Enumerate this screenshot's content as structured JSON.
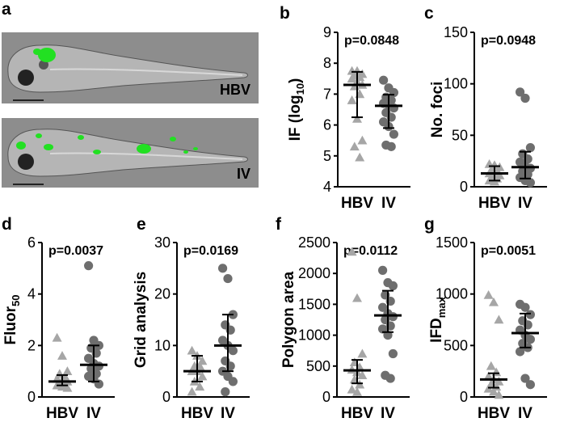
{
  "panels": {
    "a": {
      "letter": "a",
      "images": [
        {
          "label": "HBV"
        },
        {
          "label": "IV"
        }
      ]
    }
  },
  "colors": {
    "hbv": "#a6a6a6",
    "iv": "#6e6e6e",
    "line": "#000000",
    "fluor": "#22e022"
  },
  "chart_data": [
    {
      "letter": "b",
      "type": "scatter",
      "ylabel_main": "IF (log",
      "ylabel_sub": "10",
      "ylabel_end": ")",
      "ylim": [
        4,
        9
      ],
      "yticks": [
        "4",
        "5",
        "6",
        "7",
        "8",
        "9"
      ],
      "categories": [
        "HBV",
        "IV"
      ],
      "p_value": "p=0.0848",
      "series": [
        {
          "category": "HBV",
          "marker": "triangle",
          "median": 7.3,
          "iqr": [
            6.25,
            7.72
          ],
          "values": [
            7.75,
            7.75,
            7.65,
            7.6,
            7.55,
            7.5,
            7.4,
            7.3,
            7.25,
            7.0,
            6.8,
            6.2,
            5.5,
            5.3,
            4.95
          ]
        },
        {
          "category": "IV",
          "marker": "circle",
          "median": 6.62,
          "iqr": [
            5.9,
            6.98
          ],
          "values": [
            7.45,
            7.2,
            7.05,
            6.9,
            6.8,
            6.7,
            6.65,
            6.55,
            6.4,
            6.25,
            6.1,
            5.95,
            5.7,
            5.35,
            5.3
          ]
        }
      ]
    },
    {
      "letter": "c",
      "type": "scatter",
      "ylabel_main": "No. foci",
      "ylabel_sub": "",
      "ylabel_end": "",
      "ylim": [
        0,
        150
      ],
      "yticks": [
        "0",
        "50",
        "100",
        "150"
      ],
      "categories": [
        "HBV",
        "IV"
      ],
      "p_value": "p=0.0948",
      "series": [
        {
          "category": "HBV",
          "marker": "triangle",
          "median": 13,
          "iqr": [
            6,
            20
          ],
          "values": [
            22,
            21,
            19,
            17,
            15,
            13,
            12,
            11,
            9,
            8,
            6,
            5
          ]
        },
        {
          "category": "IV",
          "marker": "circle",
          "median": 19,
          "iqr": [
            8,
            34
          ],
          "values": [
            92,
            86,
            38,
            32,
            27,
            24,
            20,
            18,
            15,
            12,
            9,
            6,
            4
          ]
        }
      ]
    },
    {
      "letter": "d",
      "type": "scatter",
      "ylabel_main": "Fluor",
      "ylabel_sub": "50",
      "ylabel_end": "",
      "ylim": [
        0,
        6
      ],
      "yticks": [
        "0",
        "2",
        "4",
        "6"
      ],
      "categories": [
        "HBV",
        "IV"
      ],
      "p_value": "p=0.0037",
      "series": [
        {
          "category": "HBV",
          "marker": "triangle",
          "median": 0.6,
          "iqr": [
            0.45,
            0.85
          ],
          "values": [
            2.3,
            1.6,
            1.0,
            0.9,
            0.8,
            0.7,
            0.65,
            0.6,
            0.55,
            0.5,
            0.45,
            0.4,
            0.35
          ]
        },
        {
          "category": "IV",
          "marker": "circle",
          "median": 1.25,
          "iqr": [
            0.6,
            2.0
          ],
          "values": [
            5.1,
            2.2,
            2.0,
            1.9,
            1.7,
            1.5,
            1.3,
            1.2,
            1.1,
            0.9,
            0.8,
            0.7,
            0.5
          ]
        }
      ]
    },
    {
      "letter": "e",
      "type": "scatter",
      "ylabel_main": "Grid analysis",
      "ylabel_sub": "",
      "ylabel_end": "",
      "ylim": [
        0,
        30
      ],
      "yticks": [
        "0",
        "10",
        "20",
        "30"
      ],
      "categories": [
        "HBV",
        "IV"
      ],
      "p_value": "p=0.0169",
      "series": [
        {
          "category": "HBV",
          "marker": "triangle",
          "median": 5,
          "iqr": [
            3,
            8
          ],
          "values": [
            9,
            8,
            7,
            6,
            6,
            5,
            5,
            4,
            3,
            2,
            1
          ]
        },
        {
          "category": "IV",
          "marker": "circle",
          "median": 10,
          "iqr": [
            5,
            16
          ],
          "values": [
            25,
            23,
            16,
            14,
            13,
            11,
            10,
            9,
            7,
            6,
            5,
            4,
            3,
            1
          ]
        }
      ]
    },
    {
      "letter": "f",
      "type": "scatter",
      "ylabel_main": "Polygon area",
      "ylabel_sub": "",
      "ylabel_end": "",
      "ylim": [
        0,
        2500
      ],
      "yticks": [
        "0",
        "500",
        "1000",
        "1500",
        "2000",
        "2500"
      ],
      "categories": [
        "HBV",
        "IV"
      ],
      "p_value": "p=0.0112",
      "series": [
        {
          "category": "HBV",
          "marker": "triangle",
          "median": 430,
          "iqr": [
            220,
            600
          ],
          "values": [
            2350,
            1600,
            700,
            560,
            480,
            440,
            400,
            350,
            280,
            200,
            120,
            80
          ]
        },
        {
          "category": "IV",
          "marker": "circle",
          "median": 1320,
          "iqr": [
            1050,
            1720
          ],
          "values": [
            2050,
            1850,
            1800,
            1650,
            1550,
            1450,
            1350,
            1300,
            1250,
            1150,
            1100,
            1000,
            700,
            350,
            300
          ]
        }
      ]
    },
    {
      "letter": "g",
      "type": "scatter",
      "ylabel_main": "IFD",
      "ylabel_sub": "max",
      "ylabel_end": "",
      "ylim": [
        0,
        1500
      ],
      "yticks": [
        "0",
        "500",
        "1000",
        "1500"
      ],
      "categories": [
        "HBV",
        "IV"
      ],
      "p_value": "p=0.0051",
      "series": [
        {
          "category": "HBV",
          "marker": "triangle",
          "median": 170,
          "iqr": [
            90,
            230
          ],
          "values": [
            990,
            920,
            750,
            300,
            240,
            200,
            170,
            150,
            120,
            100,
            80,
            50,
            20
          ]
        },
        {
          "category": "IV",
          "marker": "circle",
          "median": 620,
          "iqr": [
            480,
            810
          ],
          "values": [
            900,
            870,
            800,
            740,
            700,
            650,
            600,
            560,
            520,
            480,
            440,
            180,
            120
          ]
        }
      ]
    }
  ]
}
